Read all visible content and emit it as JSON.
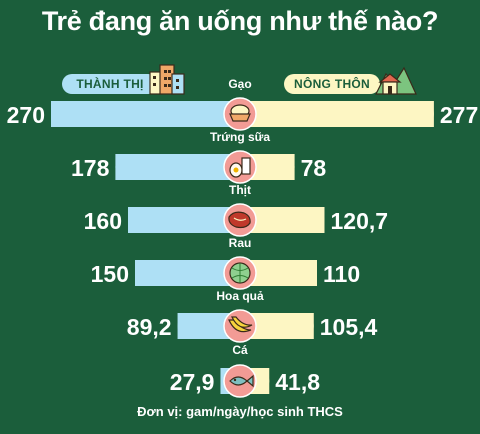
{
  "title": "Trẻ đang ăn uống như thế nào?",
  "footer": "Đơn vị: gam/ngày/học sinh THCS",
  "legend": {
    "left": "THÀNH THỊ",
    "right": "NÔNG THÔN"
  },
  "colors": {
    "background": "#1b5e3b",
    "urban": "#aee0f5",
    "rural": "#fdf6c3",
    "icon_circle": "#f29b95",
    "text": "#ffffff"
  },
  "chart_data": {
    "type": "bar",
    "orientation": "diverging-horizontal",
    "title": "Trẻ đang ăn uống như thế nào?",
    "unit": "Đơn vị: gam/ngày/học sinh THCS",
    "categories": [
      "Gạo",
      "Trứng sữa",
      "Thịt",
      "Rau",
      "Hoa quả",
      "Cá"
    ],
    "category_icons": [
      "rice-bowl-icon",
      "egg-milk-icon",
      "meat-icon",
      "cabbage-icon",
      "banana-icon",
      "fish-icon"
    ],
    "series": [
      {
        "name": "THÀNH THỊ",
        "values": [
          270,
          178,
          160,
          150,
          89.2,
          27.9
        ],
        "labels": [
          "270",
          "178",
          "160",
          "150",
          "89,2",
          "27,9"
        ]
      },
      {
        "name": "NÔNG THÔN",
        "values": [
          277,
          78,
          120.7,
          110,
          105.4,
          41.8
        ],
        "labels": [
          "277",
          "78",
          "120,7",
          "110",
          "105,4",
          "41,8"
        ]
      }
    ]
  }
}
